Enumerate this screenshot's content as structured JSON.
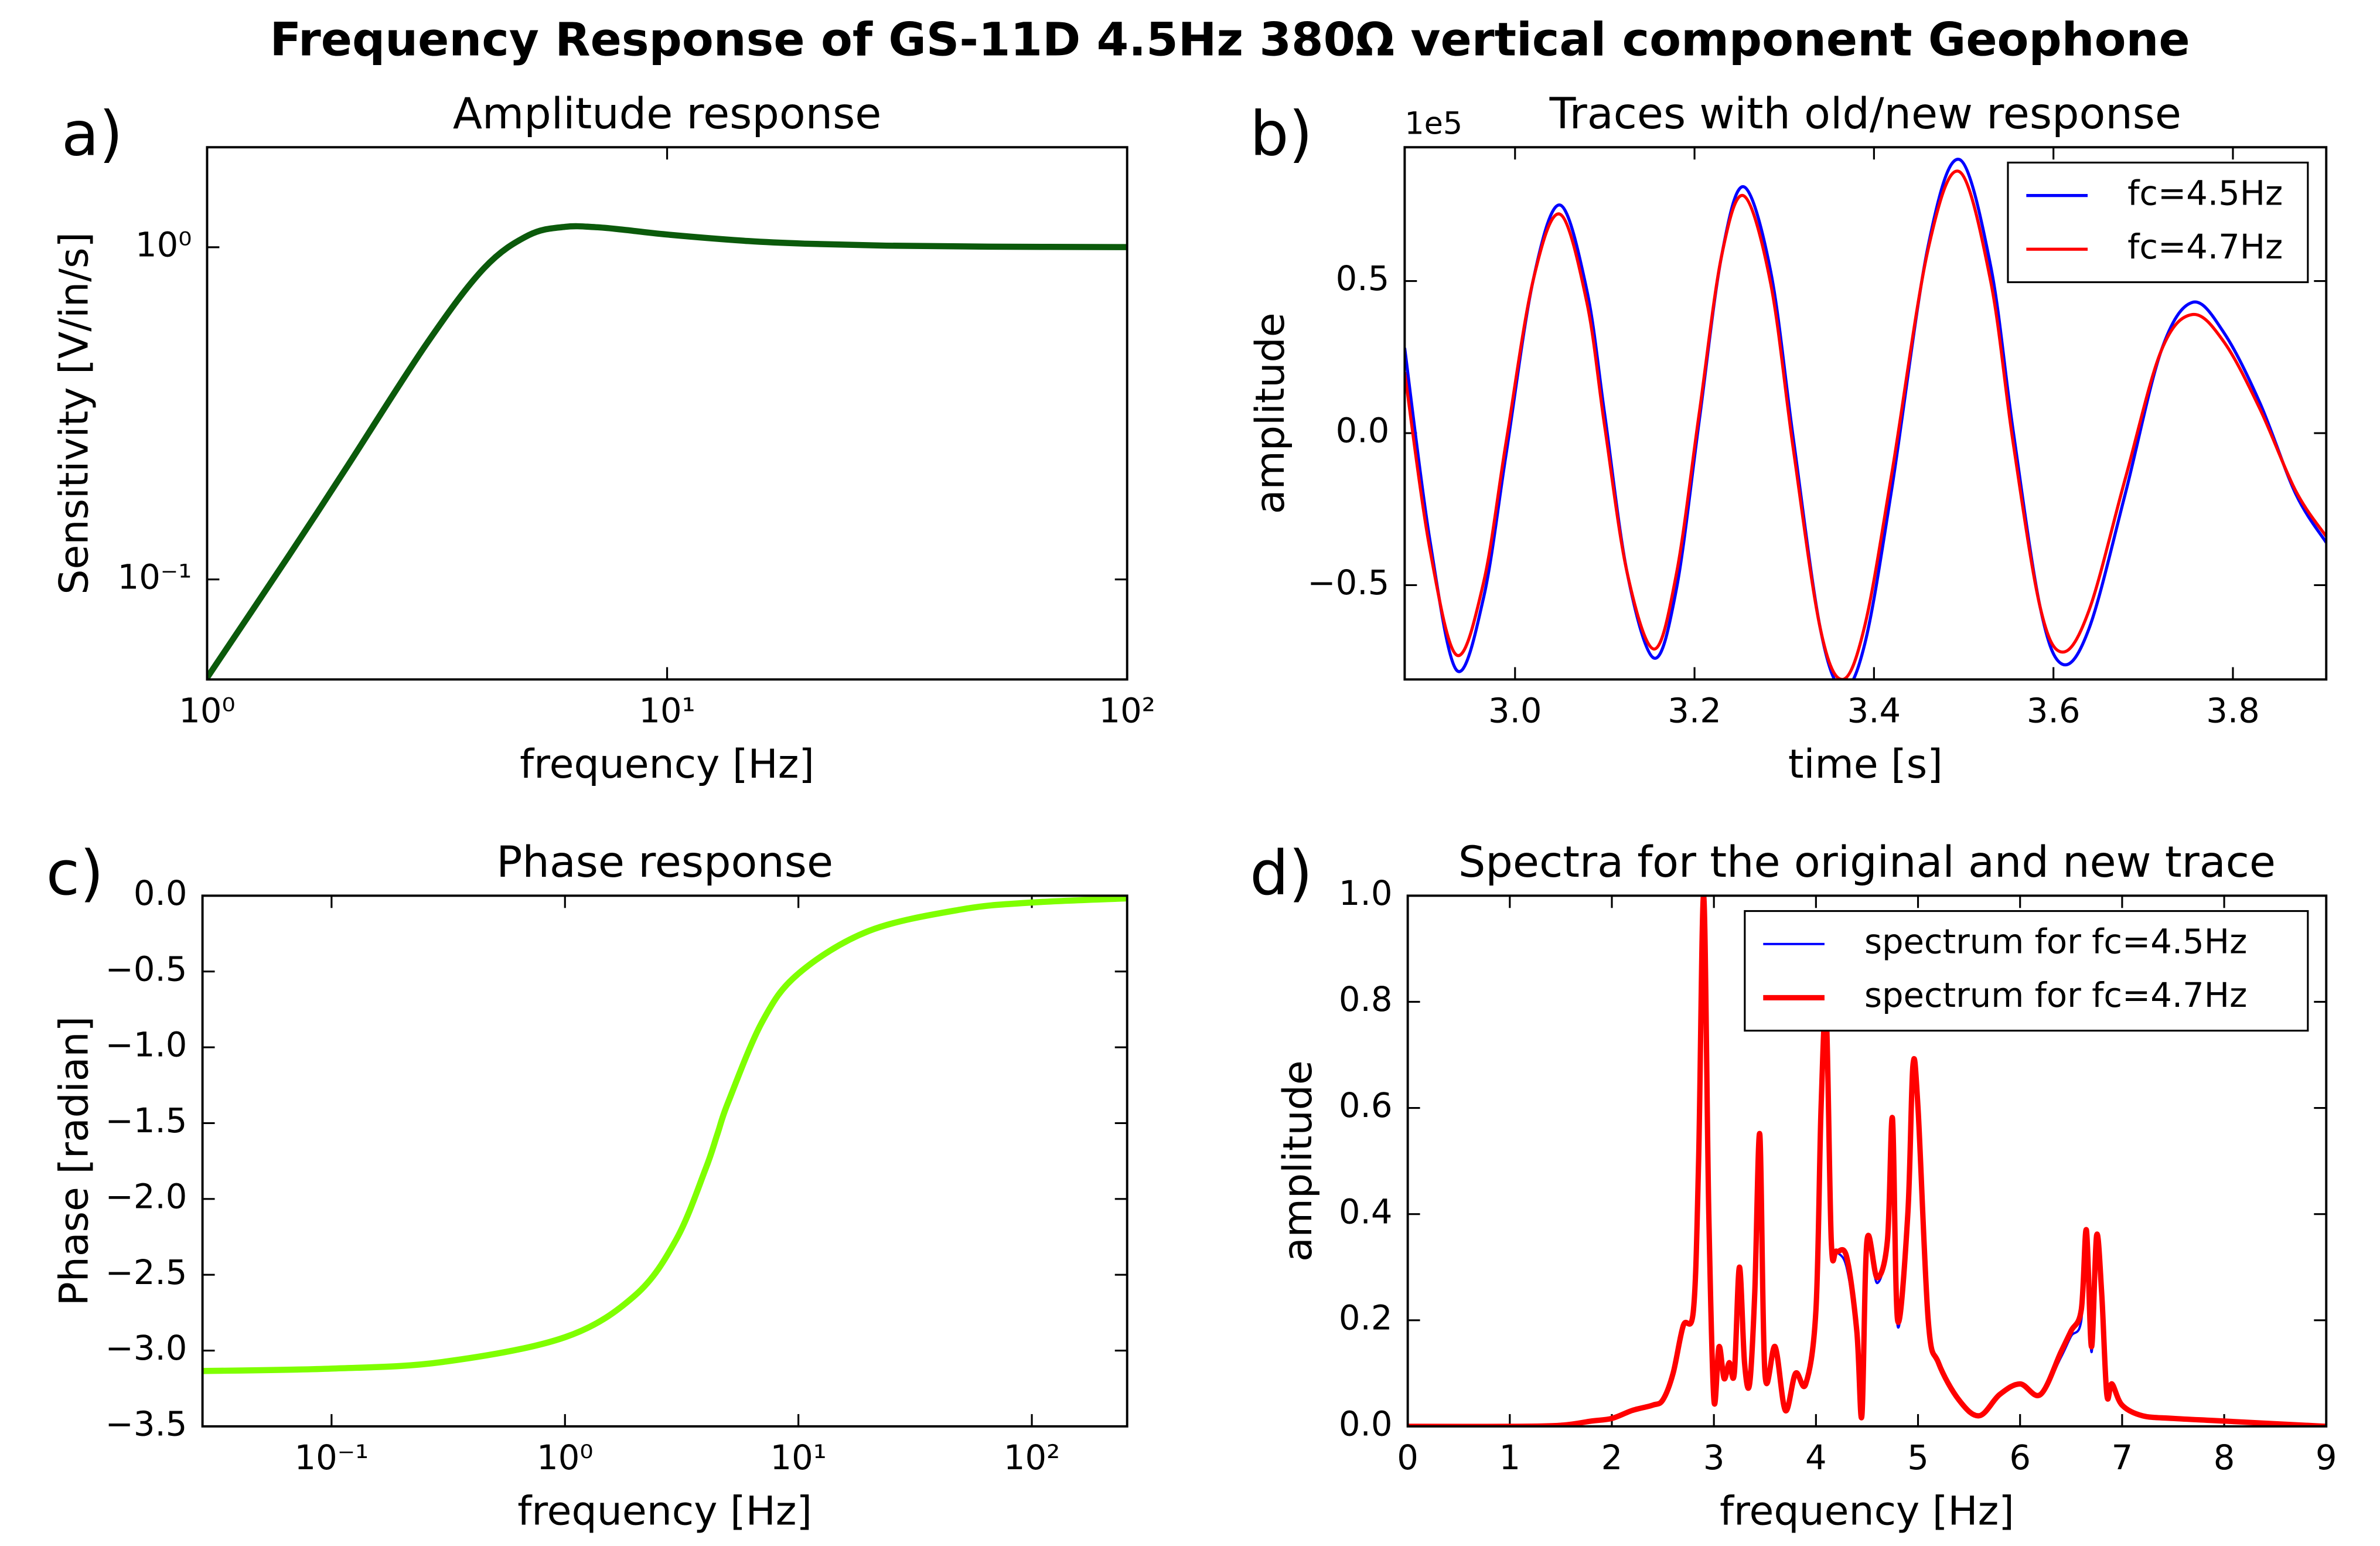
{
  "title": "Frequency Response of GS-11D 4.5Hz 380Ω vertical component Geophone",
  "chart_data": [
    {
      "type": "line",
      "panel_label": "a)",
      "title": "Amplitude response",
      "x_label": "frequency [Hz]",
      "y_label": "Sensitivity [V/in/s]",
      "xscale": "log",
      "yscale": "log",
      "xlim": [
        1,
        100
      ],
      "ylim": [
        0.05,
        2
      ],
      "xticks": [
        {
          "value": 1,
          "label": "10⁰"
        },
        {
          "value": 10,
          "label": "10¹"
        },
        {
          "value": 100,
          "label": "10²"
        }
      ],
      "yticks": [
        {
          "value": 0.1,
          "label": "10⁻¹"
        },
        {
          "value": 1,
          "label": "10⁰"
        }
      ],
      "x": [
        1,
        1.5,
        2,
        3,
        4,
        5,
        6,
        7,
        8,
        10,
        15,
        20,
        30,
        50,
        100
      ],
      "values": [
        0.0506,
        0.117,
        0.215,
        0.512,
        0.865,
        1.087,
        1.152,
        1.149,
        1.13,
        1.092,
        1.044,
        1.025,
        1.011,
        1.004,
        1.001
      ],
      "color": "#0b5a0b",
      "linewidth": 4
    },
    {
      "type": "line",
      "panel_label": "b)",
      "title": "Traces with old/new response",
      "x_label": "time [s]",
      "y_label": "amplitude",
      "offset_label": "1e5",
      "xlim": [
        2.877,
        3.904
      ],
      "ylim": [
        -0.81,
        0.94
      ],
      "xticks": [
        {
          "value": 3,
          "label": "3.0"
        },
        3.2,
        3.4,
        3.6,
        3.8
      ],
      "yticks": [
        {
          "value": -0.5,
          "label": "−0.5"
        },
        {
          "value": 0,
          "label": "0.0"
        },
        0.5
      ],
      "legend": "upper right",
      "x": [
        2.877,
        2.905,
        2.935,
        2.965,
        2.99,
        3.02,
        3.05,
        3.08,
        3.1,
        3.125,
        3.155,
        3.18,
        3.205,
        3.23,
        3.255,
        3.285,
        3.31,
        3.34,
        3.365,
        3.39,
        3.42,
        3.46,
        3.495,
        3.53,
        3.555,
        3.585,
        3.61,
        3.64,
        3.68,
        3.72,
        3.755,
        3.79,
        3.83,
        3.87,
        3.904
      ],
      "series": [
        {
          "name": "fc=4.5Hz",
          "color": "#0000ff",
          "linewidth": 2,
          "values": [
            0.28,
            -0.35,
            -0.78,
            -0.54,
            -0.07,
            0.5,
            0.75,
            0.47,
            0.06,
            -0.46,
            -0.74,
            -0.51,
            0.035,
            0.58,
            0.81,
            0.53,
            -0.015,
            -0.64,
            -0.84,
            -0.69,
            -0.18,
            0.61,
            0.9,
            0.55,
            0.01,
            -0.57,
            -0.76,
            -0.64,
            -0.2,
            0.27,
            0.43,
            0.33,
            0.1,
            -0.2,
            -0.36
          ]
        },
        {
          "name": "fc=4.7Hz",
          "color": "#ff0000",
          "linewidth": 2,
          "values": [
            0.2,
            -0.38,
            -0.73,
            -0.49,
            -0.03,
            0.5,
            0.72,
            0.43,
            0.02,
            -0.46,
            -0.71,
            -0.46,
            0.06,
            0.58,
            0.78,
            0.49,
            -0.05,
            -0.64,
            -0.81,
            -0.63,
            -0.13,
            0.6,
            0.86,
            0.5,
            -0.03,
            -0.57,
            -0.72,
            -0.58,
            -0.15,
            0.27,
            0.39,
            0.3,
            0.08,
            -0.19,
            -0.34
          ]
        }
      ]
    },
    {
      "type": "line",
      "panel_label": "c)",
      "title": "Phase response",
      "x_label": "frequency [Hz]",
      "y_label": "Phase [radian]",
      "xscale": "log",
      "xlim": [
        0.028,
        256
      ],
      "ylim": [
        -3.5,
        0
      ],
      "xticks": [
        {
          "value": 0.1,
          "label": "10⁻¹"
        },
        {
          "value": 1,
          "label": "10⁰"
        },
        {
          "value": 10,
          "label": "10¹"
        },
        {
          "value": 100,
          "label": "10²"
        }
      ],
      "yticks": [
        {
          "value": -3.5,
          "label": "−3.5"
        },
        {
          "value": -3,
          "label": "−3.0"
        },
        {
          "value": -2.5,
          "label": "−2.5"
        },
        {
          "value": -2,
          "label": "−2.0"
        },
        {
          "value": -1.5,
          "label": "−1.5"
        },
        {
          "value": -1,
          "label": "−1.0"
        },
        {
          "value": -0.5,
          "label": "−0.5"
        },
        {
          "value": 0,
          "label": "0.0"
        }
      ],
      "x": [
        0.028,
        0.1,
        0.3,
        1,
        2,
        3,
        4,
        4.5,
        5,
        7,
        10,
        20,
        50,
        100,
        256
      ],
      "values": [
        -3.135,
        -3.119,
        -3.075,
        -2.912,
        -2.635,
        -2.266,
        -1.803,
        -1.571,
        -1.363,
        -0.831,
        -0.514,
        -0.233,
        -0.0905,
        -0.0451,
        -0.0176
      ],
      "color": "#7fff00",
      "linewidth": 4
    },
    {
      "type": "line",
      "panel_label": "d)",
      "title": "Spectra for the original and new trace",
      "x_label": "frequency [Hz]",
      "y_label": "amplitude",
      "xlim": [
        0,
        9
      ],
      "ylim": [
        0,
        1
      ],
      "xticks": [
        0,
        1,
        2,
        3,
        4,
        5,
        6,
        7,
        8,
        9
      ],
      "yticks": [
        {
          "value": 0,
          "label": "0.0"
        },
        0.2,
        0.4,
        0.6,
        0.8,
        {
          "value": 1,
          "label": "1.0"
        }
      ],
      "legend": "upper right",
      "x": [
        0,
        1,
        1.5,
        1.8,
        2.0,
        2.2,
        2.4,
        2.5,
        2.6,
        2.7,
        2.8,
        2.85,
        2.9,
        2.95,
        3.0,
        3.05,
        3.1,
        3.15,
        3.2,
        3.25,
        3.3,
        3.35,
        3.4,
        3.45,
        3.5,
        3.6,
        3.7,
        3.8,
        3.9,
        4.0,
        4.05,
        4.1,
        4.15,
        4.2,
        4.3,
        4.4,
        4.45,
        4.5,
        4.6,
        4.7,
        4.75,
        4.8,
        4.9,
        4.95,
        5.0,
        5.1,
        5.2,
        5.4,
        5.6,
        5.8,
        6.0,
        6.2,
        6.4,
        6.5,
        6.6,
        6.65,
        6.7,
        6.75,
        6.8,
        6.85,
        6.9,
        7.0,
        7.2,
        7.5,
        8,
        9
      ],
      "series": [
        {
          "name": "spectrum for fc=4.5Hz",
          "color": "#0000ff",
          "linewidth": 1.5,
          "values": [
            0,
            0,
            0.002,
            0.01,
            0.015,
            0.03,
            0.04,
            0.05,
            0.1,
            0.19,
            0.22,
            0.5,
            1.0,
            0.4,
            0.05,
            0.15,
            0.09,
            0.12,
            0.1,
            0.3,
            0.12,
            0.08,
            0.25,
            0.55,
            0.1,
            0.15,
            0.03,
            0.1,
            0.08,
            0.22,
            0.6,
            0.78,
            0.35,
            0.33,
            0.3,
            0.17,
            0.02,
            0.34,
            0.27,
            0.35,
            0.58,
            0.19,
            0.4,
            0.68,
            0.6,
            0.2,
            0.12,
            0.05,
            0.02,
            0.06,
            0.08,
            0.06,
            0.13,
            0.17,
            0.2,
            0.36,
            0.14,
            0.35,
            0.24,
            0.06,
            0.08,
            0.04,
            0.02,
            0.015,
            0.01,
            0
          ]
        },
        {
          "name": "spectrum for fc=4.7Hz",
          "color": "#ff0000",
          "linewidth": 3.5,
          "values": [
            0,
            0,
            0.002,
            0.01,
            0.015,
            0.03,
            0.04,
            0.05,
            0.1,
            0.19,
            0.22,
            0.5,
            1.0,
            0.4,
            0.05,
            0.15,
            0.09,
            0.12,
            0.1,
            0.3,
            0.12,
            0.08,
            0.25,
            0.55,
            0.1,
            0.15,
            0.03,
            0.1,
            0.08,
            0.22,
            0.6,
            0.78,
            0.35,
            0.33,
            0.32,
            0.18,
            0.02,
            0.35,
            0.28,
            0.35,
            0.58,
            0.2,
            0.4,
            0.68,
            0.6,
            0.2,
            0.12,
            0.05,
            0.02,
            0.06,
            0.08,
            0.06,
            0.14,
            0.18,
            0.22,
            0.37,
            0.15,
            0.36,
            0.25,
            0.06,
            0.08,
            0.04,
            0.02,
            0.015,
            0.01,
            0
          ]
        }
      ]
    }
  ]
}
